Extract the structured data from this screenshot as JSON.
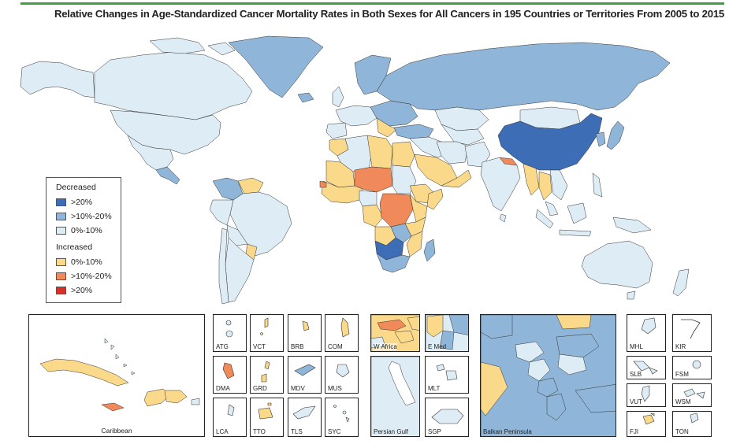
{
  "title": "Relative Changes in Age-Standardized Cancer Mortality Rates in Both Sexes for All Cancers in 195 Countries or Territories From 2005 to 2015",
  "colors": {
    "dec20": "#3d6db5",
    "dec10_20": "#8fb6d8",
    "dec0_10": "#deedf5",
    "inc0_10": "#fbd98b",
    "inc10_20": "#f08a5a",
    "inc20": "#d7302a",
    "accent": "#3ea043"
  },
  "legend": {
    "decreased_label": "Decreased",
    "increased_label": "Increased",
    "items": [
      ">20%",
      ">10%-20%",
      "0%-10%",
      "0%-10%",
      ">10%-20%",
      ">20%"
    ]
  },
  "insets": {
    "caribbean": "Caribbean",
    "atg": "ATG",
    "vct": "VCT",
    "brb": "BRB",
    "com": "COM",
    "dma": "DMA",
    "grd": "GRD",
    "mdv": "MDV",
    "mus": "MUS",
    "lca": "LCA",
    "tto": "TTO",
    "tls": "TLS",
    "syc": "SYC",
    "wafrica": "W Africa",
    "emed": "E Med",
    "persian_gulf": "Persian Gulf",
    "mlt": "MLT",
    "sgp": "SGP",
    "balkan": "Balkan Peninsula",
    "mhl": "MHL",
    "kir": "KIR",
    "slb": "SLB",
    "fsm": "FSM",
    "vut": "VUT",
    "wsm": "WSM",
    "fji": "FJI",
    "ton": "TON"
  }
}
